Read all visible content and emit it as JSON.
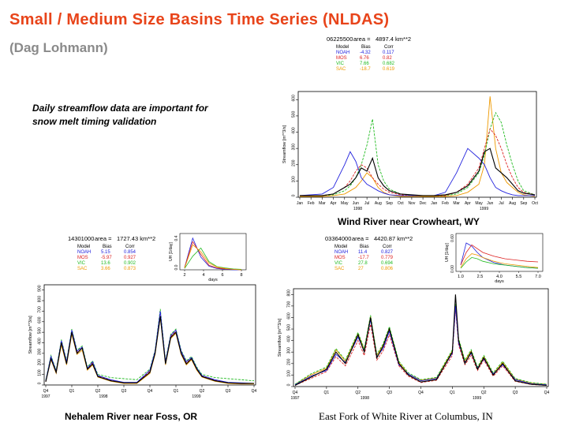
{
  "slide": {
    "title": "Small / Medium Size Basins Time Series (NLDAS)",
    "author": "(Dag Lohmann)",
    "note_line1": "Daily streamflow data are important for",
    "note_line2": "snow melt timing validation"
  },
  "colors": {
    "title": "#e8441a",
    "author": "#8a8a8a",
    "NOAH": "#2222dd",
    "MOS": "#dd2222",
    "VIC": "#22bb22",
    "SAC": "#ee9900",
    "OBS": "#000000"
  },
  "legend_header": {
    "model": "Model",
    "bias": "Bias",
    "corr": "Corr",
    "area_label": "area ="
  },
  "panels": [
    {
      "id": "wind",
      "caption": "Wind River near Crowheart, WY",
      "station": "06225500",
      "area": "4897.4 km**2",
      "stats": [
        {
          "model": "NOAH",
          "bias": "-4.32",
          "corr": "0.117"
        },
        {
          "model": "MOS",
          "bias": "6.76",
          "corr": "0.82"
        },
        {
          "model": "VIC",
          "bias": "7.66",
          "corr": "0.682"
        },
        {
          "model": "SAC",
          "bias": "-18.7",
          "corr": "0.619"
        }
      ]
    },
    {
      "id": "nehalem",
      "caption": "Nehalem River near Foss, OR",
      "station": "14301000",
      "area": "1727.43 km**2",
      "stats": [
        {
          "model": "NOAH",
          "bias": "5.15",
          "corr": "0.854"
        },
        {
          "model": "MOS",
          "bias": "-5.97",
          "corr": "0.927"
        },
        {
          "model": "VIC",
          "bias": "13.6",
          "corr": "0.902"
        },
        {
          "model": "SAC",
          "bias": "3.66",
          "corr": "0.873"
        }
      ],
      "uh": {
        "ylabel": "UH [1/day]",
        "xlabel": "days",
        "xticks": [
          "2",
          "4",
          "6",
          "8"
        ],
        "yticks": [
          "0.0",
          "0.4"
        ]
      }
    },
    {
      "id": "whiteriver",
      "caption": "East Fork of White River at Columbus, IN",
      "station": "03364000",
      "area": "4420.87 km**2",
      "stats": [
        {
          "model": "NOAH",
          "bias": "11.4",
          "corr": "0.827"
        },
        {
          "model": "MOS",
          "bias": "-17.7",
          "corr": "0.779"
        },
        {
          "model": "VIC",
          "bias": "27.8",
          "corr": "0.694"
        },
        {
          "model": "SAC",
          "bias": "27",
          "corr": "0.806"
        }
      ],
      "uh": {
        "ylabel": "UH [1/day]",
        "xlabel": "days",
        "xticks": [
          "1.0",
          "2.5",
          "4.0",
          "5.5",
          "7.0"
        ],
        "yticks": [
          "0.00",
          "0.60"
        ]
      }
    }
  ],
  "chart_data": [
    {
      "type": "line",
      "title": "Wind River near Crowheart, WY",
      "ylabel": "Streamflow [m**3/s]",
      "ylim": [
        0,
        650
      ],
      "yticks": [
        "0",
        "100",
        "200",
        "300",
        "400",
        "500",
        "600"
      ],
      "xticks": [
        "Jan",
        "Feb",
        "Mar",
        "Apr",
        "May",
        "Jun",
        "Jul",
        "Aug",
        "Sep",
        "Oct",
        "Nov",
        "Dec",
        "Jan",
        "Feb",
        "Mar",
        "Apr",
        "May",
        "Jun",
        "Jul",
        "Aug",
        "Sep",
        "Oct"
      ],
      "year_labels": [
        "1998",
        "1999"
      ],
      "x": [
        0,
        2,
        3,
        4,
        4.5,
        5,
        5.5,
        6,
        6.5,
        7,
        7.5,
        8,
        9,
        10,
        11,
        12,
        13,
        14,
        15,
        16,
        16.5,
        17,
        17.5,
        18,
        18.5,
        19,
        19.5,
        20,
        21
      ],
      "series": [
        {
          "name": "OBS",
          "values": [
            10,
            10,
            20,
            60,
            80,
            120,
            180,
            160,
            240,
            120,
            70,
            40,
            20,
            15,
            10,
            10,
            15,
            30,
            70,
            160,
            280,
            300,
            180,
            150,
            120,
            80,
            40,
            25,
            15
          ]
        },
        {
          "name": "NOAH",
          "values": [
            10,
            20,
            60,
            200,
            280,
            220,
            120,
            80,
            60,
            40,
            25,
            15,
            10,
            10,
            10,
            10,
            30,
            150,
            300,
            240,
            200,
            120,
            60,
            40,
            25,
            15,
            10,
            10,
            10
          ]
        },
        {
          "name": "MOS",
          "values": [
            10,
            10,
            20,
            60,
            100,
            160,
            200,
            180,
            120,
            80,
            50,
            30,
            15,
            10,
            10,
            10,
            10,
            30,
            80,
            180,
            300,
            420,
            380,
            300,
            200,
            120,
            60,
            30,
            15
          ]
        },
        {
          "name": "VIC",
          "values": [
            10,
            10,
            15,
            40,
            70,
            120,
            200,
            320,
            480,
            200,
            100,
            50,
            20,
            10,
            10,
            10,
            10,
            20,
            60,
            150,
            260,
            420,
            520,
            460,
            320,
            200,
            100,
            40,
            15
          ]
        },
        {
          "name": "SAC",
          "values": [
            5,
            5,
            10,
            20,
            40,
            60,
            100,
            150,
            120,
            60,
            30,
            15,
            5,
            5,
            5,
            5,
            5,
            10,
            30,
            80,
            200,
            620,
            300,
            150,
            90,
            60,
            30,
            15,
            5
          ]
        }
      ]
    },
    {
      "type": "line",
      "title": "Nehalem River near Foss, OR",
      "ylabel": "Streamflow [m**3/s]",
      "ylim": [
        0,
        950
      ],
      "yticks": [
        "0",
        "100",
        "200",
        "300",
        "400",
        "500",
        "600",
        "700",
        "800",
        "900"
      ],
      "xticks": [
        "Q4",
        "Q1",
        "Q2",
        "Q3",
        "Q4",
        "Q1",
        "Q2",
        "Q3",
        "Q4"
      ],
      "year_labels": [
        "1997",
        "1998",
        "1999"
      ],
      "x": [
        0,
        0.2,
        0.4,
        0.6,
        0.8,
        1,
        1.2,
        1.4,
        1.6,
        1.8,
        2,
        2.5,
        3,
        3.5,
        4,
        4.2,
        4.4,
        4.6,
        4.8,
        5,
        5.2,
        5.4,
        5.6,
        5.8,
        6,
        6.5,
        7,
        7.5,
        8
      ],
      "series": [
        {
          "name": "OBS",
          "values": [
            30,
            250,
            120,
            400,
            200,
            500,
            300,
            350,
            150,
            200,
            80,
            40,
            20,
            20,
            120,
            300,
            650,
            200,
            450,
            500,
            300,
            200,
            250,
            150,
            80,
            40,
            20,
            15,
            15
          ]
        },
        {
          "name": "NOAH",
          "values": [
            40,
            270,
            130,
            420,
            220,
            520,
            320,
            360,
            160,
            220,
            90,
            50,
            25,
            25,
            140,
            320,
            700,
            220,
            470,
            520,
            320,
            220,
            260,
            160,
            90,
            50,
            25,
            20,
            15
          ]
        },
        {
          "name": "MOS",
          "values": [
            35,
            260,
            120,
            410,
            210,
            510,
            310,
            350,
            150,
            210,
            85,
            45,
            20,
            20,
            130,
            310,
            680,
            210,
            460,
            510,
            310,
            210,
            250,
            150,
            85,
            45,
            20,
            15,
            15
          ]
        },
        {
          "name": "VIC",
          "values": [
            45,
            280,
            140,
            430,
            230,
            530,
            330,
            370,
            170,
            230,
            100,
            70,
            60,
            50,
            150,
            330,
            720,
            230,
            480,
            530,
            330,
            230,
            270,
            170,
            100,
            70,
            60,
            50,
            40
          ]
        },
        {
          "name": "SAC",
          "values": [
            30,
            240,
            110,
            380,
            190,
            480,
            290,
            330,
            140,
            190,
            75,
            35,
            15,
            15,
            110,
            290,
            640,
            190,
            440,
            490,
            290,
            190,
            240,
            140,
            75,
            35,
            15,
            10,
            10
          ]
        }
      ]
    },
    {
      "type": "line",
      "title": "East Fork of White River at Columbus, IN",
      "ylabel": "Streamflow [m**3/s]",
      "ylim": [
        0,
        850
      ],
      "yticks": [
        "0",
        "100",
        "200",
        "300",
        "400",
        "500",
        "600",
        "700",
        "800"
      ],
      "xticks": [
        "Q4",
        "Q1",
        "Q2",
        "Q3",
        "Q4",
        "Q1",
        "Q2",
        "Q3",
        "Q4"
      ],
      "year_labels": [
        "1997",
        "1998",
        "1999"
      ],
      "x": [
        0,
        0.5,
        1,
        1.3,
        1.6,
        2,
        2.2,
        2.4,
        2.6,
        2.8,
        3,
        3.3,
        3.6,
        4,
        4.5,
        5,
        5.1,
        5.2,
        5.4,
        5.6,
        5.8,
        6,
        6.3,
        6.6,
        7,
        7.5,
        8
      ],
      "series": [
        {
          "name": "OBS",
          "values": [
            10,
            80,
            150,
            300,
            200,
            450,
            300,
            600,
            250,
            350,
            500,
            200,
            100,
            40,
            60,
            300,
            800,
            400,
            200,
            300,
            150,
            250,
            100,
            200,
            50,
            20,
            10
          ]
        },
        {
          "name": "NOAH",
          "values": [
            15,
            90,
            140,
            280,
            210,
            430,
            310,
            580,
            260,
            330,
            480,
            190,
            110,
            50,
            70,
            290,
            700,
            380,
            210,
            290,
            160,
            240,
            110,
            190,
            60,
            25,
            15
          ]
        },
        {
          "name": "MOS",
          "values": [
            10,
            70,
            130,
            260,
            180,
            400,
            270,
            540,
            230,
            310,
            450,
            180,
            90,
            35,
            55,
            270,
            680,
            360,
            190,
            270,
            140,
            230,
            90,
            180,
            45,
            18,
            10
          ]
        },
        {
          "name": "VIC",
          "values": [
            20,
            110,
            170,
            330,
            230,
            470,
            330,
            620,
            280,
            370,
            520,
            220,
            120,
            60,
            80,
            320,
            720,
            420,
            230,
            320,
            170,
            270,
            120,
            220,
            70,
            35,
            20
          ]
        },
        {
          "name": "SAC",
          "values": [
            20,
            100,
            160,
            320,
            220,
            460,
            320,
            610,
            270,
            360,
            510,
            210,
            110,
            55,
            75,
            310,
            710,
            410,
            220,
            310,
            160,
            260,
            110,
            210,
            65,
            30,
            20
          ]
        }
      ]
    }
  ],
  "uh_data": [
    {
      "panel": "nehalem",
      "x": [
        1,
        2,
        3,
        4,
        5,
        6,
        7,
        8
      ],
      "series": [
        {
          "name": "NOAH",
          "values": [
            0.05,
            0.7,
            0.28,
            0.08,
            0.03,
            0.01,
            0.0,
            0.0
          ]
        },
        {
          "name": "MOS",
          "values": [
            0.05,
            0.62,
            0.34,
            0.1,
            0.04,
            0.02,
            0.01,
            0.0
          ]
        },
        {
          "name": "VIC",
          "values": [
            0.03,
            0.3,
            0.48,
            0.18,
            0.07,
            0.04,
            0.02,
            0.01
          ]
        },
        {
          "name": "SAC",
          "values": [
            0.04,
            0.55,
            0.4,
            0.15,
            0.06,
            0.03,
            0.01,
            0.0
          ]
        }
      ]
    },
    {
      "panel": "whiteriver",
      "x": [
        1,
        1.5,
        2,
        2.5,
        3,
        4,
        5,
        6,
        7,
        8
      ],
      "series": [
        {
          "name": "NOAH",
          "values": [
            0.1,
            0.45,
            0.4,
            0.3,
            0.22,
            0.14,
            0.1,
            0.08,
            0.06,
            0.05
          ]
        },
        {
          "name": "MOS",
          "values": [
            0.1,
            0.3,
            0.42,
            0.36,
            0.3,
            0.24,
            0.2,
            0.18,
            0.16,
            0.15
          ]
        },
        {
          "name": "VIC",
          "values": [
            0.05,
            0.15,
            0.22,
            0.2,
            0.16,
            0.12,
            0.1,
            0.08,
            0.06,
            0.05
          ]
        },
        {
          "name": "SAC",
          "values": [
            0.06,
            0.2,
            0.28,
            0.26,
            0.22,
            0.16,
            0.12,
            0.1,
            0.08,
            0.06
          ]
        }
      ]
    }
  ]
}
